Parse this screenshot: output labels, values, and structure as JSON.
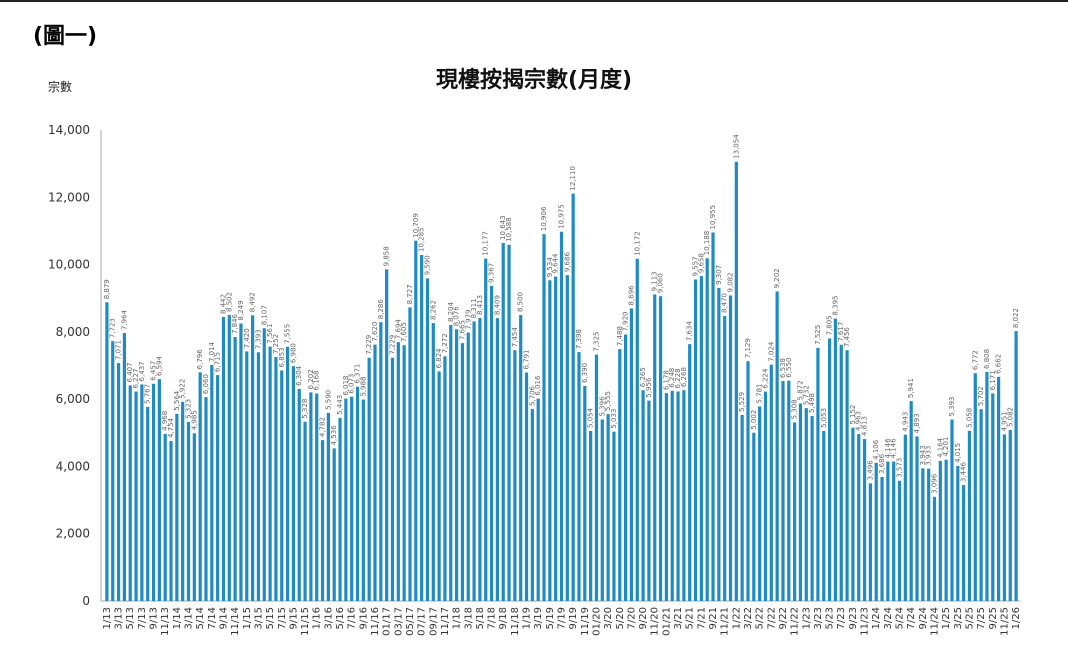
{
  "figure_label": "(圖一)",
  "chart_data": {
    "type": "bar",
    "title": "現樓按揭宗數(月度)",
    "xlabel": "",
    "ylabel": "宗數",
    "ylim": [
      0,
      14000
    ],
    "yticks": [
      0,
      2000,
      4000,
      6000,
      8000,
      10000,
      12000,
      14000
    ],
    "ytick_labels": [
      "0",
      "2,000",
      "4,000",
      "6,000",
      "8,000",
      "10,000",
      "12,000",
      "14,000"
    ],
    "grid": false,
    "legend": null,
    "bar_color": "#1f8bc2",
    "start_month": "1/13",
    "end_month": "1/26",
    "tick_labels": [
      "1/13",
      "3/13",
      "5/13",
      "7/13",
      "9/13",
      "11/13",
      "1/14",
      "3/14",
      "5/14",
      "7/14",
      "9/14",
      "11/14",
      "1/15",
      "3/15",
      "5/15",
      "7/15",
      "9/15",
      "11/15",
      "1/16",
      "3/16",
      "5/16",
      "7/16",
      "9/16",
      "11/16",
      "01/17",
      "03/17",
      "05/17",
      "07/17",
      "09/17",
      "11/17",
      "1/18",
      "3/18",
      "5/18",
      "7/18",
      "9/18",
      "11/18",
      "1/19",
      "3/19",
      "5/19",
      "7/19",
      "9/19",
      "11/19",
      "01/20",
      "3/20",
      "5/20",
      "7/20",
      "9/20",
      "11/20",
      "01/21",
      "3/21",
      "5/21",
      "7/21",
      "9/21",
      "11/21",
      "1/22",
      "3/22",
      "5/22",
      "7/22",
      "9/22",
      "11/22",
      "1/23",
      "3/23",
      "5/23",
      "7/23",
      "9/23",
      "11/23",
      "1/24",
      "3/24",
      "5/24",
      "7/24",
      "9/24",
      "11/24",
      "1/25",
      "3/25",
      "5/25",
      "7/25",
      "9/25",
      "11/25",
      "1/26"
    ],
    "values": [
      8879,
      7723,
      7071,
      7964,
      6407,
      6227,
      6437,
      5767,
      6457,
      6594,
      4968,
      4754,
      5564,
      5922,
      5323,
      4985,
      6796,
      6060,
      7014,
      6715,
      8442,
      8502,
      7846,
      8249,
      7420,
      8492,
      7393,
      8107,
      7561,
      7252,
      6853,
      7555,
      6980,
      6304,
      5328,
      6202,
      6168,
      4782,
      5590,
      4536,
      5443,
      6018,
      6073,
      6371,
      5988,
      7229,
      7620,
      8286,
      9858,
      7229,
      7694,
      7605,
      8727,
      10709,
      10285,
      9590,
      8262,
      6824,
      7272,
      8204,
      8076,
      7665,
      7979,
      8311,
      8413,
      10177,
      9367,
      8409,
      10643,
      10588,
      7454,
      8500,
      6791,
      5706,
      6016,
      10906,
      9534,
      9644,
      10975,
      9686,
      12110,
      7398,
      6390,
      5054,
      7325,
      5396,
      5555,
      5033,
      7488,
      7920,
      8696,
      10172,
      6265,
      5956,
      9113,
      9060,
      6178,
      6248,
      6228,
      6268,
      7634,
      9557,
      9658,
      10188,
      10955,
      9307,
      8470,
      9082,
      13054,
      5529,
      7129,
      5002,
      5781,
      6224,
      7024,
      9202,
      6538,
      6550,
      5308,
      5872,
      5732,
      5498,
      7525,
      5053,
      7805,
      8395,
      7617,
      7456,
      5152,
      4963,
      4813,
      3496,
      4106,
      3686,
      4146,
      4146,
      3573,
      4943,
      5941,
      4893,
      3943,
      3933,
      3096,
      4164,
      4201,
      5393,
      4015,
      3446,
      5058,
      6772,
      5702,
      6808,
      6171,
      6662,
      4951,
      5082,
      8022
    ]
  }
}
